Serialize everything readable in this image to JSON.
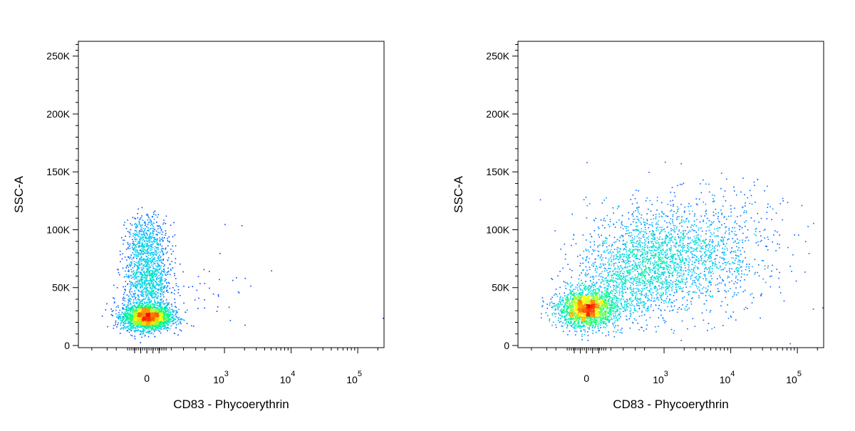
{
  "colors": {
    "density_scale": [
      "#0000ff",
      "#00c8ff",
      "#00ff80",
      "#ffff00",
      "#ff0000"
    ]
  },
  "chart_data": [
    {
      "type": "scatter",
      "title": "",
      "xlabel": "CD83 - Phycoerythrin",
      "ylabel": "SSC-A",
      "x_scale": "biexponential",
      "x_ticks": [
        {
          "value": 0,
          "label": "0"
        },
        {
          "value": 1000,
          "base": "10",
          "exp": "3"
        },
        {
          "value": 10000,
          "base": "10",
          "exp": "4"
        },
        {
          "value": 100000,
          "base": "10",
          "exp": "5"
        }
      ],
      "y_ticks": [
        "0",
        "50K",
        "100K",
        "150K",
        "200K",
        "250K"
      ],
      "ylim": [
        0,
        262144
      ],
      "events": [
        {
          "x": 0,
          "y": 25000,
          "sx": 0.18,
          "sy": 5500,
          "n": 2600
        },
        {
          "x": 0,
          "y": 55000,
          "sx": 0.18,
          "sy": 15000,
          "n": 900
        },
        {
          "x": 0,
          "y": 90000,
          "sx": 0.16,
          "sy": 12000,
          "n": 500
        },
        {
          "x": 150,
          "y": 45000,
          "sx": 0.45,
          "sy": 18000,
          "n": 40
        }
      ],
      "sparse_points": [
        {
          "x": 1000,
          "y": 105000
        },
        {
          "x": 1800,
          "y": 104000
        },
        {
          "x": 800,
          "y": 80000
        },
        {
          "x": 5000,
          "y": 65000
        },
        {
          "x": 500,
          "y": 50000
        },
        {
          "x": 700,
          "y": 30000
        },
        {
          "x": 1200,
          "y": 22000
        },
        {
          "x": 2000,
          "y": 18000
        },
        {
          "x": 300,
          "y": 60000
        },
        {
          "x": 400,
          "y": 40000
        },
        {
          "x": 600,
          "y": 45000
        },
        {
          "x": 260000,
          "y": 24000
        }
      ]
    },
    {
      "type": "scatter",
      "title": "",
      "xlabel": "CD83 - Phycoerythrin",
      "ylabel": "SSC-A",
      "x_scale": "biexponential",
      "x_ticks": [
        {
          "value": 0,
          "label": "0"
        },
        {
          "value": 1000,
          "base": "10",
          "exp": "3"
        },
        {
          "value": 10000,
          "base": "10",
          "exp": "4"
        },
        {
          "value": 100000,
          "base": "10",
          "exp": "5"
        }
      ],
      "y_ticks": [
        "0",
        "50K",
        "100K",
        "150K",
        "200K",
        "250K"
      ],
      "ylim": [
        0,
        262144
      ],
      "events": [
        {
          "x": 0,
          "y": 32000,
          "sx": 0.22,
          "sy": 8000,
          "n": 2000
        },
        {
          "x": 200,
          "y": 55000,
          "sx": 0.4,
          "sy": 18000,
          "n": 900
        },
        {
          "x": 600,
          "y": 80000,
          "sx": 0.5,
          "sy": 22000,
          "n": 1100
        },
        {
          "x": 3000,
          "y": 75000,
          "sx": 0.55,
          "sy": 25000,
          "n": 700
        },
        {
          "x": 12000,
          "y": 95000,
          "sx": 0.45,
          "sy": 22000,
          "n": 200
        }
      ],
      "sparse_points": [
        {
          "x": 15000,
          "y": 145000
        },
        {
          "x": 20000,
          "y": 130000
        },
        {
          "x": 500,
          "y": 150000
        },
        {
          "x": 10000,
          "y": 25000
        },
        {
          "x": 260000,
          "y": 33000
        },
        {
          "x": 8000,
          "y": 48000
        }
      ]
    }
  ]
}
